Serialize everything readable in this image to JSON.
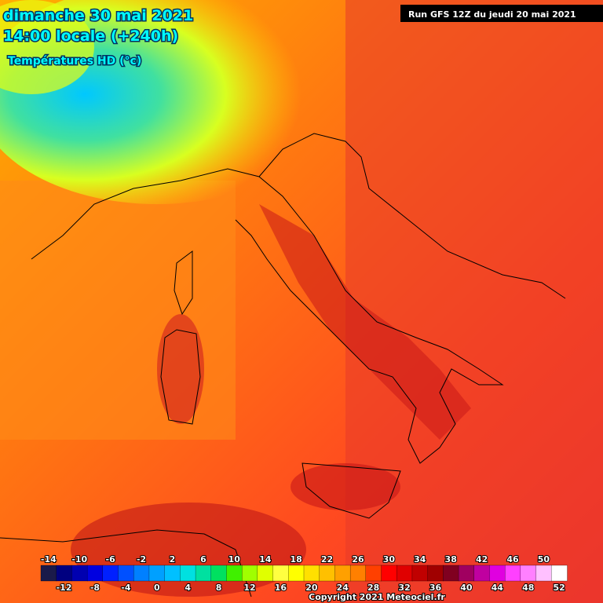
{
  "header": {
    "date": "dimanche 30 mai 2021",
    "time": "14:00 locale (+240h)",
    "parameter": "Températures HD (°c)",
    "run": "Run GFS 12Z du jeudi 20 mai 2021"
  },
  "legend": {
    "scale": [
      {
        "value": -14,
        "color": "#1a1a4a"
      },
      {
        "value": -12,
        "color": "#000080"
      },
      {
        "value": -10,
        "color": "#0000b0"
      },
      {
        "value": -8,
        "color": "#0000e0"
      },
      {
        "value": -6,
        "color": "#0020ff"
      },
      {
        "value": -4,
        "color": "#0050ff"
      },
      {
        "value": -2,
        "color": "#0080ff"
      },
      {
        "value": 0,
        "color": "#00a0ff"
      },
      {
        "value": 2,
        "color": "#00c0ff"
      },
      {
        "value": 4,
        "color": "#00e0e0"
      },
      {
        "value": 6,
        "color": "#00e0a0"
      },
      {
        "value": 8,
        "color": "#00e060"
      },
      {
        "value": 10,
        "color": "#40f000"
      },
      {
        "value": 12,
        "color": "#a0ff00"
      },
      {
        "value": 14,
        "color": "#e0ff00"
      },
      {
        "value": 16,
        "color": "#ffff40"
      },
      {
        "value": 18,
        "color": "#ffff00"
      },
      {
        "value": 20,
        "color": "#ffe000"
      },
      {
        "value": 22,
        "color": "#ffc000"
      },
      {
        "value": 24,
        "color": "#ffa000"
      },
      {
        "value": 26,
        "color": "#ff8000"
      },
      {
        "value": 28,
        "color": "#ff4000"
      },
      {
        "value": 30,
        "color": "#ff0000"
      },
      {
        "value": 32,
        "color": "#e00000"
      },
      {
        "value": 34,
        "color": "#c00000"
      },
      {
        "value": 36,
        "color": "#a00000"
      },
      {
        "value": 38,
        "color": "#800020"
      },
      {
        "value": 40,
        "color": "#a00060"
      },
      {
        "value": 42,
        "color": "#c000a0"
      },
      {
        "value": 44,
        "color": "#e000e0"
      },
      {
        "value": 46,
        "color": "#ff40ff"
      },
      {
        "value": 48,
        "color": "#ff80ff"
      },
      {
        "value": 50,
        "color": "#ffc0ff"
      },
      {
        "value": 52,
        "color": "#ffffff"
      }
    ]
  },
  "footer": {
    "copyright": "Copyright 2021 Meteociel.fr"
  }
}
